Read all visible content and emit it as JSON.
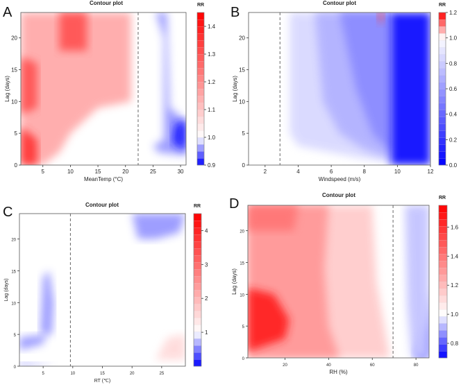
{
  "chart_data": [
    {
      "panel": "A",
      "type": "contour",
      "title": "Contour plot",
      "xlabel": "MeanTemp (°C)",
      "ylabel": "Lag (days)",
      "xlim": [
        1,
        31
      ],
      "ylim": [
        0,
        24
      ],
      "xticks": [
        5,
        10,
        15,
        20,
        25,
        30
      ],
      "yticks": [
        0,
        5,
        10,
        15,
        20
      ],
      "reference_line_x": 22.3,
      "colorbar": {
        "title": "RR",
        "min": 0.9,
        "max": 1.45,
        "ticks": [
          "0.9",
          "1.0",
          "1.1",
          "1.2",
          "1.3",
          "1.4"
        ],
        "tick_values": [
          0.9,
          1.0,
          1.1,
          1.2,
          1.3,
          1.4
        ]
      },
      "regions": [
        {
          "label": "high RR at low temperature",
          "points": [
            [
              1,
              0
            ],
            [
              5,
              0
            ],
            [
              8,
              2
            ],
            [
              10,
              5
            ],
            [
              15,
              9
            ],
            [
              21,
              10
            ],
            [
              21,
              24
            ],
            [
              1,
              24
            ]
          ],
          "rr": 1.15
        },
        {
          "label": "peak RR at low temperature, short lag",
          "points": [
            [
              1,
              0
            ],
            [
              4,
              0
            ],
            [
              4,
              4
            ],
            [
              1,
              6
            ]
          ],
          "rr": 1.35
        },
        {
          "label": "peak RR at low temperature, mid lag",
          "points": [
            [
              1,
              8
            ],
            [
              4,
              9
            ],
            [
              4,
              16
            ],
            [
              1,
              17
            ]
          ],
          "rr": 1.3
        },
        {
          "label": "peak RR near 10 °C, long lag",
          "points": [
            [
              8,
              18
            ],
            [
              13,
              18
            ],
            [
              13,
              24
            ],
            [
              8,
              24
            ]
          ],
          "rr": 1.3
        },
        {
          "label": "low RR at high temperature",
          "points": [
            [
              25,
              3
            ],
            [
              27,
              4
            ],
            [
              27,
              20
            ],
            [
              25.5,
              24
            ],
            [
              27.5,
              24
            ],
            [
              28,
              9
            ],
            [
              31,
              7
            ],
            [
              31,
              1.5
            ],
            [
              26,
              2
            ]
          ],
          "rr": 0.96
        },
        {
          "label": "lowest RR at high temperature, short lag",
          "points": [
            [
              28.5,
              3.5
            ],
            [
              31,
              2.2
            ],
            [
              31,
              7
            ],
            [
              29,
              6.5
            ]
          ],
          "rr": 0.91
        }
      ]
    },
    {
      "panel": "B",
      "type": "contour",
      "title": "Contour plot",
      "xlabel": "Windspeed (m/s)",
      "ylabel": "Lag (days)",
      "xlim": [
        1,
        12
      ],
      "ylim": [
        0,
        24
      ],
      "xticks": [
        2,
        4,
        6,
        8,
        10,
        12
      ],
      "yticks": [
        0,
        5,
        10,
        15,
        20
      ],
      "reference_line_x": 2.9,
      "colorbar": {
        "title": "RR",
        "min": 0.0,
        "max": 1.2,
        "ticks": [
          "0.0",
          "0.2",
          "0.4",
          "0.6",
          "0.8",
          "1.0",
          "1.2"
        ],
        "tick_values": [
          0.0,
          0.2,
          0.4,
          0.6,
          0.8,
          1.0,
          1.2
        ]
      },
      "regions": [
        {
          "label": "slight decrease",
          "points": [
            [
              3.5,
              24
            ],
            [
              9.6,
              24
            ],
            [
              9.6,
              0.5
            ],
            [
              8,
              1
            ],
            [
              6,
              2
            ],
            [
              4,
              3
            ],
            [
              3.5,
              5
            ]
          ],
          "rr": 0.85
        },
        {
          "label": "moderate decrease",
          "points": [
            [
              5,
              24
            ],
            [
              9.6,
              24
            ],
            [
              9.6,
              1
            ],
            [
              8,
              2.5
            ],
            [
              6.5,
              5
            ],
            [
              5.5,
              10
            ]
          ],
          "rr": 0.7
        },
        {
          "label": "stronger decrease",
          "points": [
            [
              6.5,
              24
            ],
            [
              9.6,
              24
            ],
            [
              9.6,
              2
            ],
            [
              8.5,
              5
            ],
            [
              7.5,
              12
            ]
          ],
          "rr": 0.55
        },
        {
          "label": "strongest decrease at high wind",
          "points": [
            [
              9.6,
              0
            ],
            [
              12,
              0
            ],
            [
              12,
              24
            ],
            [
              9.6,
              24
            ]
          ],
          "rr": 0.05
        },
        {
          "label": "increase near 9 m/s, long lag",
          "points": [
            [
              8.8,
              24
            ],
            [
              9.2,
              24
            ],
            [
              9.0,
              22
            ]
          ],
          "rr": 1.15
        }
      ]
    },
    {
      "panel": "C",
      "type": "contour",
      "title": "Contour plot",
      "xlabel": "RT (℃)",
      "ylabel": "Lag (days)",
      "xlim": [
        1,
        29
      ],
      "ylim": [
        0,
        24
      ],
      "xticks": [
        5,
        10,
        15,
        20,
        25
      ],
      "yticks": [
        0,
        5,
        10,
        15,
        20
      ],
      "reference_line_x": 9.6,
      "colorbar": {
        "title": "RR",
        "min": 0.0,
        "max": 4.5,
        "ticks": [
          "1",
          "2",
          "3",
          "4"
        ],
        "tick_values": [
          1,
          2,
          3,
          4
        ]
      },
      "regions": [
        {
          "label": "low RR at cold RT, short lag",
          "points": [
            [
              1,
              2.5
            ],
            [
              5,
              3.5
            ],
            [
              5.5,
              5
            ],
            [
              1,
              4.5
            ]
          ],
          "rr": 0.6
        },
        {
          "label": "low RR at cold RT, mid lag",
          "points": [
            [
              4.5,
              5
            ],
            [
              5,
              14
            ],
            [
              6,
              15
            ],
            [
              6.8,
              10
            ],
            [
              6.5,
              5
            ]
          ],
          "rr": 0.6
        },
        {
          "label": "low RR at cold RT, lag 0",
          "points": [
            [
              1,
              0
            ],
            [
              7,
              0.2
            ],
            [
              1,
              0.6
            ]
          ],
          "rr": 0.6
        },
        {
          "label": "low RR at warm RT, long lag",
          "points": [
            [
              20,
              24
            ],
            [
              29,
              24
            ],
            [
              28,
              21
            ],
            [
              24,
              20
            ],
            [
              21,
              20
            ]
          ],
          "rr": 0.6
        },
        {
          "label": "high RR at warm RT, short lag",
          "points": [
            [
              24,
              1
            ],
            [
              29,
              1
            ],
            [
              29,
              5
            ],
            [
              26,
              4.5
            ]
          ],
          "rr": 1.5
        }
      ]
    },
    {
      "panel": "D",
      "type": "contour",
      "title": "Contour plot",
      "xlabel": "RH (%)",
      "ylabel": "Lag (days)",
      "xlim": [
        3,
        86
      ],
      "ylim": [
        0,
        24
      ],
      "xticks": [
        20,
        40,
        60,
        80
      ],
      "yticks": [
        0,
        5,
        10,
        15,
        20
      ],
      "reference_line_x": 69.5,
      "colorbar": {
        "title": "RR",
        "min": 0.7,
        "max": 1.75,
        "ticks": [
          "0.8",
          "1.0",
          "1.2",
          "1.4",
          "1.6"
        ],
        "tick_values": [
          0.8,
          1.0,
          1.2,
          1.4,
          1.6
        ]
      },
      "regions": [
        {
          "label": "elevated RR at low to mid humidity",
          "points": [
            [
              3,
              0
            ],
            [
              68,
              0
            ],
            [
              66,
              4
            ],
            [
              62,
              12
            ],
            [
              60,
              24
            ],
            [
              3,
              24
            ]
          ],
          "rr": 1.15
        },
        {
          "label": "higher RR at low humidity",
          "points": [
            [
              3,
              0
            ],
            [
              45,
              0
            ],
            [
              40,
              5
            ],
            [
              38,
              14
            ],
            [
              40,
              24
            ],
            [
              3,
              24
            ]
          ],
          "rr": 1.3
        },
        {
          "label": "peak RR at low humidity, short lag",
          "points": [
            [
              3,
              1
            ],
            [
              20,
              3
            ],
            [
              22,
              6
            ],
            [
              15,
              10
            ],
            [
              3,
              11
            ]
          ],
          "rr": 1.65
        },
        {
          "label": "peak RR near lag 24 at low humidity",
          "points": [
            [
              3,
              20
            ],
            [
              24,
              20
            ],
            [
              26,
              24
            ],
            [
              3,
              24
            ]
          ],
          "rr": 1.4
        },
        {
          "label": "low RR at high humidity",
          "points": [
            [
              79,
              0
            ],
            [
              86,
              0
            ],
            [
              86,
              11
            ],
            [
              84,
              6
            ],
            [
              80,
              1
            ]
          ],
          "rr": 0.8
        },
        {
          "label": "slight decrease at high humidity",
          "points": [
            [
              75,
              24
            ],
            [
              86,
              24
            ],
            [
              86,
              0
            ],
            [
              78,
              0
            ],
            [
              76,
              8
            ]
          ],
          "rr": 0.93
        }
      ]
    }
  ]
}
